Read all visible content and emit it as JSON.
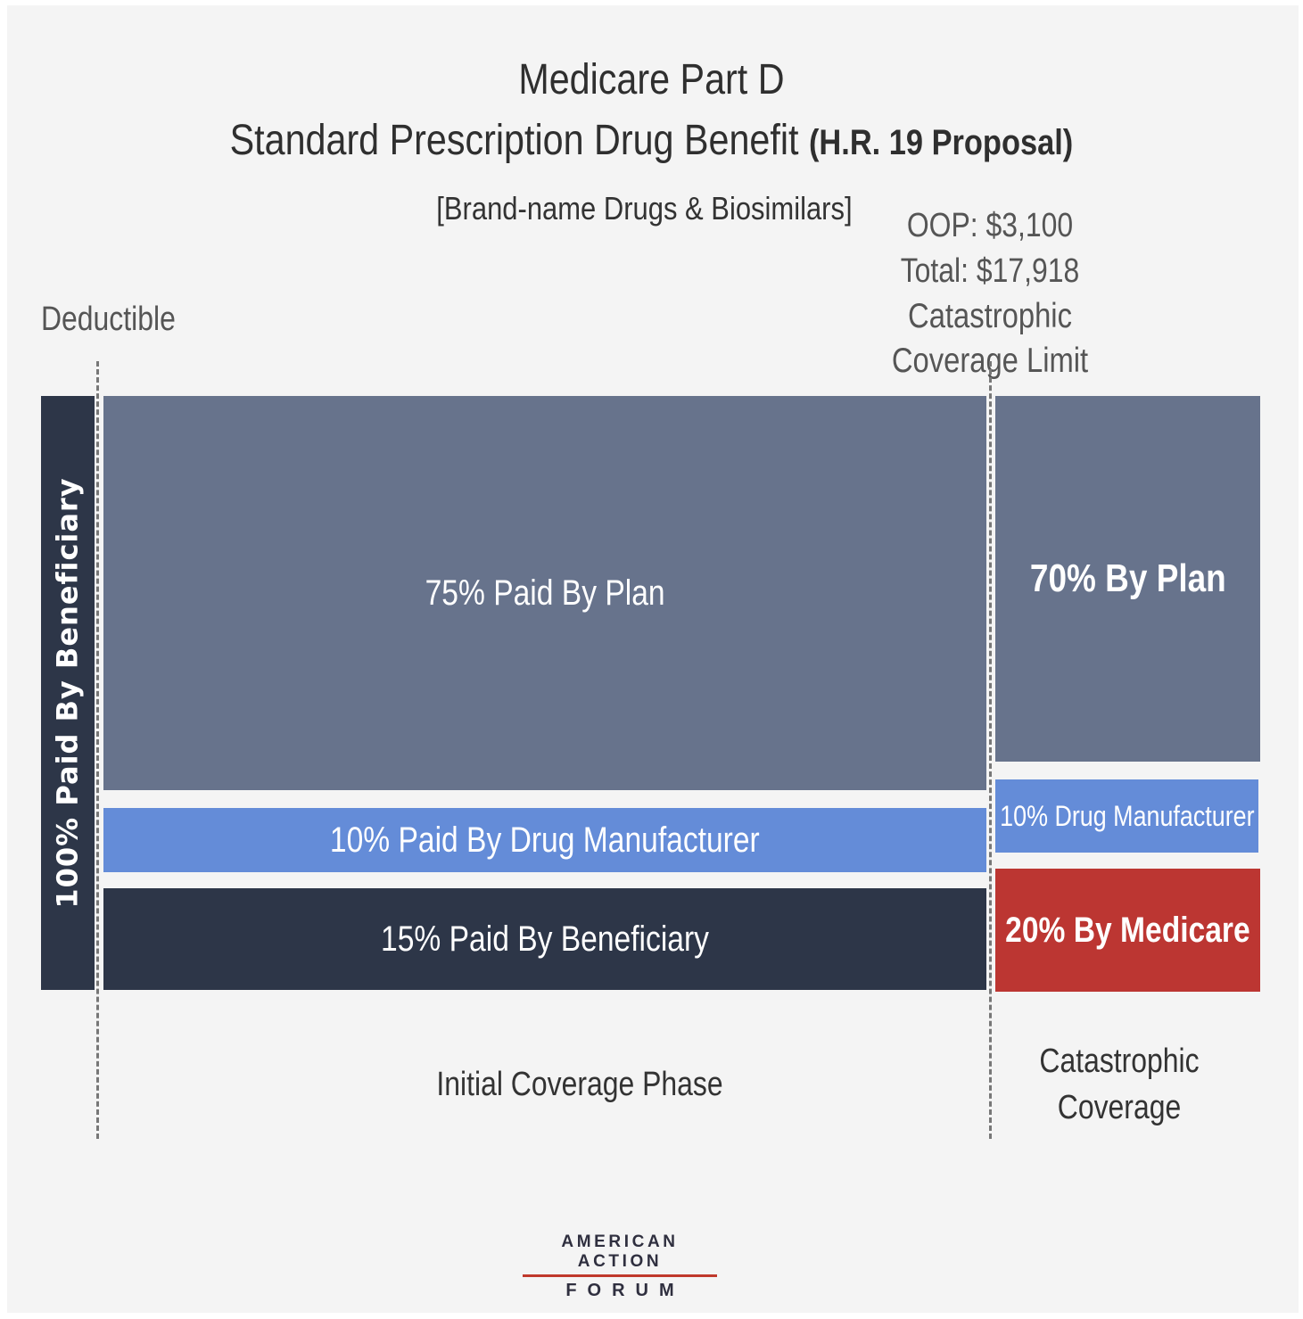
{
  "header": {
    "title_line1": "Medicare Part D",
    "title_line2": "Standard Prescription Drug Benefit ",
    "title_line2_bold": "(H.R. 19 Proposal)",
    "subtitle": "[Brand-name Drugs & Biosimilars]"
  },
  "markers": {
    "oop": "OOP: $3,100",
    "total": "Total: $17,918",
    "limit": "Catastrophic Coverage Limit",
    "deductible": "Deductible"
  },
  "blocks": {
    "deductible": "100% Paid By Beneficiary",
    "initial_plan": "75% Paid By Plan",
    "initial_manufacturer": "10% Paid By Drug Manufacturer",
    "initial_beneficiary": "15% Paid By Beneficiary",
    "catastrophic_plan": "70% By Plan",
    "catastrophic_manufacturer": "10% Drug Manufacturer",
    "catastrophic_medicare": "20% By Medicare"
  },
  "phases": {
    "initial": "Initial Coverage Phase",
    "catastrophic_line1": "Catastrophic",
    "catastrophic_line2": "Coverage"
  },
  "logo": {
    "line1": "AMERICAN ACTION",
    "line2": "FORUM"
  },
  "colors": {
    "plan": "#67738c",
    "manufacturer": "#648cd8",
    "beneficiary": "#2d3648",
    "medicare": "#bc3632",
    "logo_accent": "#c0392b"
  }
}
